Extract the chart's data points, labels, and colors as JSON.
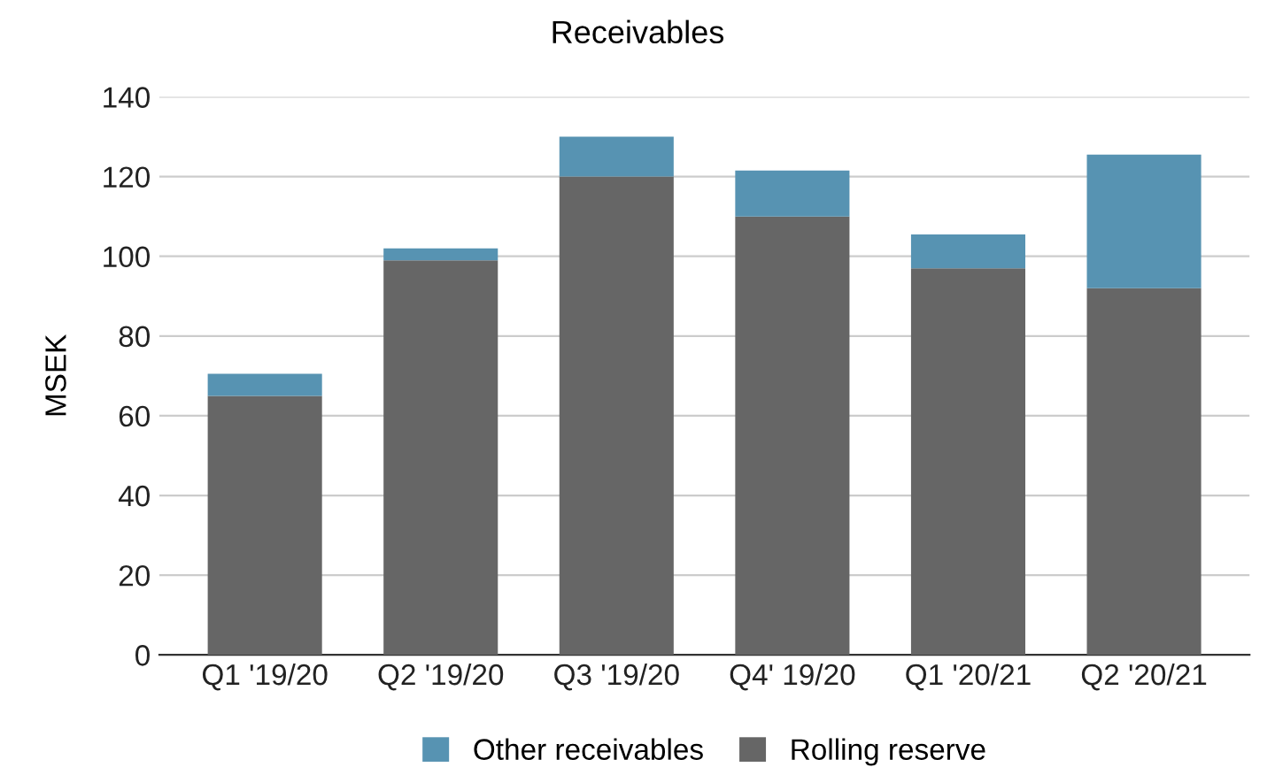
{
  "chart_data": {
    "type": "bar",
    "title": "Receivables",
    "ylabel": "MSEK",
    "categories": [
      "Q1 '19/20",
      "Q2 '19/20",
      "Q3 '19/20",
      "Q4' 19/20",
      "Q1 '20/21",
      "Q2 '20/21"
    ],
    "stacked": true,
    "series": [
      {
        "name": "Rolling reserve",
        "color": "#666666",
        "values": [
          65,
          99,
          120,
          110,
          97,
          92
        ]
      },
      {
        "name": "Other receivables",
        "color": "#5793b2",
        "values": [
          5.5,
          3,
          10,
          11.5,
          8.5,
          33.5
        ]
      }
    ],
    "ylim": [
      0,
      140
    ],
    "yticks": [
      0,
      20,
      40,
      60,
      80,
      100,
      120,
      140
    ],
    "grid": "y",
    "legend": "bottom"
  }
}
